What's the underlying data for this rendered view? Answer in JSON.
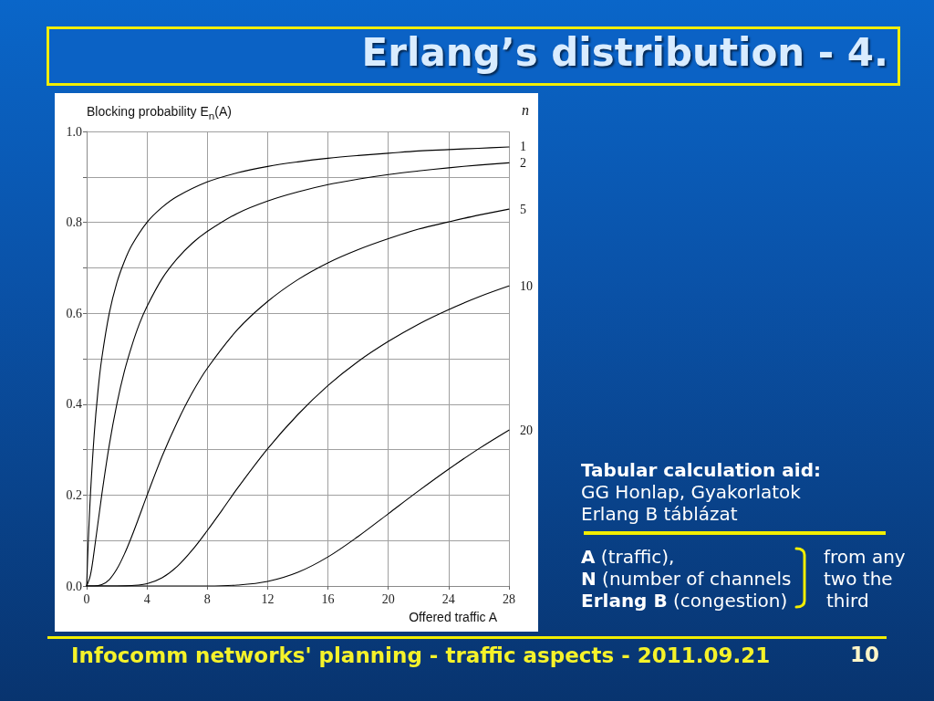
{
  "chart_data": {
    "type": "line",
    "title": "Erlang’s distribution - 4.",
    "xlabel": "Offered traffic A",
    "ylabel": "Blocking probability E$_{n}$(A)",
    "legend_title": "n",
    "xlim": [
      0,
      28
    ],
    "xticks": [
      0,
      4,
      8,
      12,
      16,
      20,
      24,
      28
    ],
    "ylim": [
      0,
      1
    ],
    "yticks": [
      {
        "value": 0,
        "label": "0.0"
      },
      {
        "value": 0.1,
        "label": null
      },
      {
        "value": 0.2,
        "label": "0.2"
      },
      {
        "value": 0.3,
        "label": null
      },
      {
        "value": 0.4,
        "label": "0.4"
      },
      {
        "value": 0.5,
        "label": null
      },
      {
        "value": 0.6,
        "label": "0.6"
      },
      {
        "value": 0.7,
        "label": null
      },
      {
        "value": 0.8,
        "label": "0.8"
      },
      {
        "value": 0.9,
        "label": null
      },
      {
        "value": 1,
        "label": "1.0"
      }
    ],
    "grid": true,
    "marker": "none",
    "series": [
      {
        "name": "1",
        "color": "#000000",
        "x": [
          0,
          0.1,
          0.25,
          0.5,
          0.75,
          1,
          1.5,
          2,
          2.5,
          3,
          4,
          5,
          6,
          8,
          10,
          12,
          14,
          16,
          18,
          20,
          22,
          24,
          26,
          28
        ],
        "values": [
          0,
          0.091,
          0.2,
          0.333,
          0.429,
          0.5,
          0.6,
          0.667,
          0.714,
          0.75,
          0.8,
          0.833,
          0.857,
          0.889,
          0.909,
          0.923,
          0.933,
          0.941,
          0.947,
          0.952,
          0.957,
          0.96,
          0.963,
          0.966
        ]
      },
      {
        "name": "2",
        "color": "#000000",
        "x": [
          0,
          0.25,
          0.5,
          1,
          1.5,
          2,
          2.5,
          3,
          3.5,
          4,
          5,
          6,
          7,
          8,
          10,
          12,
          14,
          16,
          18,
          20,
          22,
          24,
          26,
          28
        ],
        "values": [
          0,
          0.024,
          0.077,
          0.2,
          0.31,
          0.4,
          0.472,
          0.529,
          0.577,
          0.615,
          0.676,
          0.72,
          0.754,
          0.78,
          0.82,
          0.847,
          0.867,
          0.883,
          0.895,
          0.905,
          0.913,
          0.92,
          0.926,
          0.931
        ]
      },
      {
        "name": "5",
        "color": "#000000",
        "x": [
          0,
          0.5,
          1,
          1.5,
          2,
          2.5,
          3,
          3.5,
          4,
          5,
          6,
          7,
          8,
          10,
          12,
          14,
          16,
          18,
          20,
          22,
          24,
          26,
          28
        ],
        "values": [
          0,
          0,
          0.003,
          0.014,
          0.037,
          0.07,
          0.11,
          0.154,
          0.199,
          0.285,
          0.36,
          0.425,
          0.479,
          0.564,
          0.626,
          0.674,
          0.711,
          0.74,
          0.764,
          0.785,
          0.801,
          0.816,
          0.829
        ]
      },
      {
        "name": "10",
        "color": "#000000",
        "x": [
          0,
          2,
          3,
          4,
          5,
          6,
          7,
          8,
          9,
          10,
          12,
          14,
          16,
          18,
          20,
          22,
          24,
          26,
          28
        ],
        "values": [
          0,
          0,
          0.001,
          0.005,
          0.018,
          0.043,
          0.079,
          0.122,
          0.168,
          0.215,
          0.302,
          0.377,
          0.441,
          0.494,
          0.538,
          0.576,
          0.608,
          0.636,
          0.66
        ]
      },
      {
        "name": "20",
        "color": "#000000",
        "x": [
          0,
          4,
          8,
          10,
          12,
          14,
          16,
          18,
          20,
          22,
          24,
          26,
          28
        ],
        "values": [
          0,
          0,
          0,
          0.002,
          0.01,
          0.03,
          0.064,
          0.109,
          0.159,
          0.209,
          0.257,
          0.302,
          0.343
        ]
      }
    ],
    "annotations": [
      "Tabular calculation aid:",
      "GG Honlap, Gyakorlatok",
      "Erlang B táblázat",
      "A (traffic),",
      "N (number of channels",
      "Erlang B (congestion)",
      "from any",
      "two the",
      "third",
      "Infocomm networks' planning - traffic aspects - 2011.09.21",
      "10"
    ]
  }
}
